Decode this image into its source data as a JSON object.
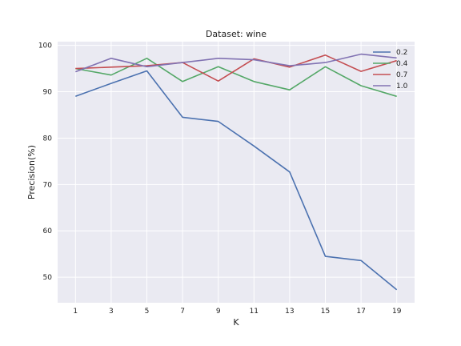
{
  "chart_data": {
    "type": "line",
    "title": "Dataset: wine",
    "xlabel": "K",
    "ylabel": "Precision(%)",
    "x": [
      1,
      3,
      5,
      7,
      9,
      11,
      13,
      15,
      17,
      19
    ],
    "xticks": [
      "1",
      "3",
      "5",
      "7",
      "9",
      "11",
      "13",
      "15",
      "17",
      "19"
    ],
    "yticks": [
      "50",
      "60",
      "70",
      "80",
      "90",
      "100"
    ],
    "ylim": [
      44.5,
      100.8
    ],
    "xlim": [
      0,
      20
    ],
    "grid": true,
    "legend_position": "top-right",
    "series": [
      {
        "name": "0.2",
        "color": "#4c72b0",
        "values": [
          89.0,
          91.8,
          94.5,
          84.5,
          83.6,
          78.3,
          72.7,
          54.5,
          53.6,
          47.3
        ]
      },
      {
        "name": "0.4",
        "color": "#55a868",
        "values": [
          95.0,
          93.6,
          97.2,
          92.2,
          95.4,
          92.2,
          90.4,
          95.4,
          91.3,
          89.0
        ]
      },
      {
        "name": "0.7",
        "color": "#c44e52",
        "values": [
          95.0,
          95.3,
          95.6,
          96.3,
          92.3,
          97.1,
          95.3,
          97.9,
          94.4,
          96.7
        ]
      },
      {
        "name": "1.0",
        "color": "#8172b2",
        "values": [
          94.3,
          97.2,
          95.4,
          96.3,
          97.2,
          96.9,
          95.6,
          96.3,
          98.1,
          97.3
        ]
      }
    ]
  }
}
